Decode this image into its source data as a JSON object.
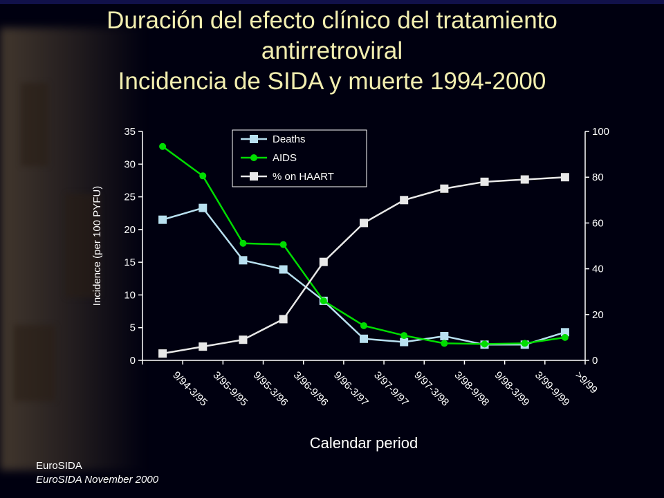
{
  "title": {
    "line1": "Duración del efecto clínico del tratamiento",
    "line2": "antirretroviral",
    "line3": "Incidencia de SIDA y muerte 1994-2000"
  },
  "footer": {
    "source": "EuroSIDA",
    "citation": "EuroSIDA November 2000"
  },
  "colors": {
    "background": "#000010",
    "title": "#f2eeb0",
    "deaths": "#b8e0f0",
    "aids": "#00dd00",
    "haart": "#e8e8e8",
    "axis": "#ffffff"
  },
  "chart_data": {
    "type": "line",
    "xlabel": "Calendar period",
    "ylabel": "Incidence (per 100 PYFU)",
    "ylim": [
      0,
      35
    ],
    "yticks": [
      0,
      5,
      10,
      15,
      20,
      25,
      30,
      35
    ],
    "y2lim": [
      0,
      100
    ],
    "y2ticks": [
      0,
      20,
      40,
      60,
      80,
      100
    ],
    "grid": false,
    "legend_position": "top-center",
    "categories": [
      "9/94-3/95",
      "3/95-9/95",
      "9/95-3/96",
      "3/96-9/96",
      "9/96-3/97",
      "3/97-9/97",
      "9/97-3/98",
      "3/98-9/98",
      "9/98-3/99",
      "3/99-9/99",
      ">9/99"
    ],
    "series": [
      {
        "name": "Deaths",
        "axis": "left",
        "marker": "square",
        "values": [
          21.5,
          23.3,
          15.3,
          13.9,
          9.1,
          3.3,
          2.8,
          3.7,
          2.4,
          2.4,
          4.3
        ]
      },
      {
        "name": "AIDS",
        "axis": "left",
        "marker": "circle",
        "values": [
          32.7,
          28.2,
          17.9,
          17.7,
          9.1,
          5.3,
          3.8,
          2.6,
          2.5,
          2.6,
          3.5
        ]
      },
      {
        "name": "% on HAART",
        "axis": "right",
        "marker": "square",
        "values": [
          3,
          6,
          9,
          18,
          43,
          60,
          70,
          75,
          78,
          79,
          80
        ]
      }
    ]
  }
}
